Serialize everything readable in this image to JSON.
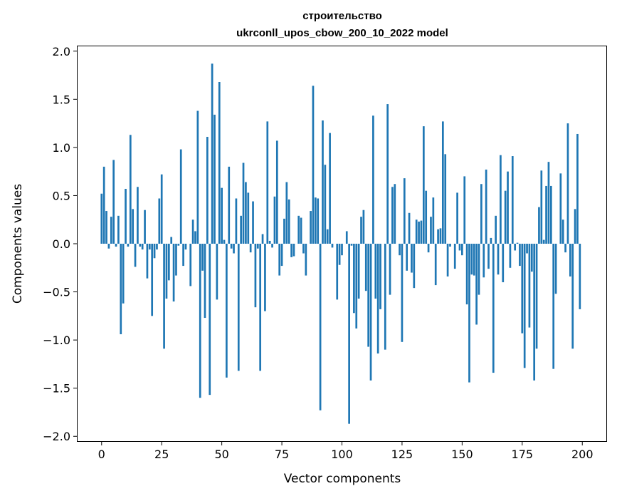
{
  "chart_data": {
    "type": "bar",
    "title_line1": "строительство",
    "title_line2": "ukrconll_upos_cbow_200_10_2022 model",
    "xlabel": "Vector components",
    "ylabel": "Components values",
    "xlim": [
      -10,
      210
    ],
    "ylim": [
      -2.05,
      2.05
    ],
    "xticks": [
      0,
      25,
      50,
      75,
      100,
      125,
      150,
      175,
      200
    ],
    "xtick_labels": [
      "0",
      "25",
      "50",
      "75",
      "100",
      "125",
      "150",
      "175",
      "200"
    ],
    "yticks": [
      2.0,
      1.5,
      1.0,
      0.5,
      0.0,
      -0.5,
      -1.0,
      -1.5,
      -2.0
    ],
    "ytick_labels": [
      "2.0",
      "1.5",
      "1.0",
      "0.5",
      "0.0",
      "−0.5",
      "−1.0",
      "−1.5",
      "−2.0"
    ],
    "bar_color": "#1f77b4",
    "x": [
      0,
      1,
      2,
      3,
      4,
      5,
      6,
      7,
      8,
      9,
      10,
      11,
      12,
      13,
      14,
      15,
      16,
      17,
      18,
      19,
      20,
      21,
      22,
      23,
      24,
      25,
      26,
      27,
      28,
      29,
      30,
      31,
      32,
      33,
      34,
      35,
      36,
      37,
      38,
      39,
      40,
      41,
      42,
      43,
      44,
      45,
      46,
      47,
      48,
      49,
      50,
      51,
      52,
      53,
      54,
      55,
      56,
      57,
      58,
      59,
      60,
      61,
      62,
      63,
      64,
      65,
      66,
      67,
      68,
      69,
      70,
      71,
      72,
      73,
      74,
      75,
      76,
      77,
      78,
      79,
      80,
      81,
      82,
      83,
      84,
      85,
      86,
      87,
      88,
      89,
      90,
      91,
      92,
      93,
      94,
      95,
      96,
      97,
      98,
      99,
      100,
      101,
      102,
      103,
      104,
      105,
      106,
      107,
      108,
      109,
      110,
      111,
      112,
      113,
      114,
      115,
      116,
      117,
      118,
      119,
      120,
      121,
      122,
      123,
      124,
      125,
      126,
      127,
      128,
      129,
      130,
      131,
      132,
      133,
      134,
      135,
      136,
      137,
      138,
      139,
      140,
      141,
      142,
      143,
      144,
      145,
      146,
      147,
      148,
      149,
      150,
      151,
      152,
      153,
      154,
      155,
      156,
      157,
      158,
      159,
      160,
      161,
      162,
      163,
      164,
      165,
      166,
      167,
      168,
      169,
      170,
      171,
      172,
      173,
      174,
      175,
      176,
      177,
      178,
      179,
      180,
      181,
      182,
      183,
      184,
      185,
      186,
      187,
      188,
      189,
      190,
      191,
      192,
      193,
      194,
      195,
      196,
      197,
      198,
      199
    ],
    "values": [
      0.52,
      0.8,
      0.34,
      -0.05,
      0.28,
      0.87,
      -0.03,
      0.29,
      -0.94,
      -0.62,
      0.57,
      -0.03,
      1.13,
      0.36,
      -0.24,
      0.59,
      -0.03,
      -0.06,
      0.35,
      -0.36,
      -0.06,
      -0.75,
      -0.15,
      -0.06,
      0.47,
      0.72,
      -1.09,
      -0.57,
      -0.38,
      0.07,
      -0.6,
      -0.33,
      -0.02,
      0.98,
      -0.23,
      -0.06,
      0.0,
      -0.44,
      0.25,
      0.13,
      1.38,
      -1.6,
      -0.28,
      -0.77,
      1.11,
      -1.57,
      1.87,
      1.34,
      -0.58,
      1.68,
      0.58,
      0.04,
      -1.39,
      0.8,
      -0.05,
      -0.1,
      0.47,
      -1.32,
      0.29,
      0.84,
      0.64,
      0.53,
      -0.09,
      0.44,
      -0.66,
      -0.05,
      -1.32,
      0.1,
      -0.7,
      1.27,
      0.03,
      -0.04,
      0.49,
      1.07,
      -0.33,
      -0.23,
      0.26,
      0.64,
      0.46,
      -0.14,
      -0.13,
      0.0,
      0.29,
      0.27,
      -0.1,
      -0.33,
      0.0,
      0.34,
      1.64,
      0.48,
      0.47,
      -1.73,
      1.28,
      0.82,
      0.15,
      1.15,
      -0.04,
      0.0,
      -0.58,
      -0.22,
      -0.12,
      0.0,
      0.13,
      -1.87,
      -0.02,
      -0.72,
      -0.88,
      -0.57,
      0.28,
      0.35,
      -0.49,
      -1.07,
      -1.42,
      1.33,
      -0.57,
      -1.14,
      -0.68,
      0.0,
      -1.1,
      1.45,
      -0.53,
      0.59,
      0.62,
      0.0,
      -0.12,
      -1.02,
      0.68,
      -0.28,
      0.32,
      -0.3,
      -0.46,
      0.25,
      0.23,
      0.24,
      1.22,
      0.55,
      -0.09,
      0.28,
      0.48,
      -0.43,
      0.15,
      0.16,
      1.27,
      0.93,
      -0.34,
      -0.03,
      0.0,
      -0.26,
      0.53,
      -0.07,
      -0.12,
      0.7,
      -0.63,
      -1.44,
      -0.32,
      -0.33,
      -0.84,
      -0.53,
      0.62,
      -0.35,
      0.77,
      -0.26,
      0.06,
      -1.34,
      0.29,
      -0.32,
      0.92,
      -0.4,
      0.55,
      0.75,
      -0.25,
      0.91,
      -0.07,
      0.01,
      -0.23,
      -0.93,
      -1.29,
      -0.1,
      -0.87,
      -0.29,
      -1.42,
      -1.09,
      0.38,
      0.76,
      0.04,
      0.6,
      0.85,
      0.6,
      -1.3,
      -0.52,
      0.0,
      0.73,
      0.25,
      -0.09,
      1.25,
      -0.34,
      -1.09,
      0.36,
      1.14,
      -0.68
    ]
  }
}
